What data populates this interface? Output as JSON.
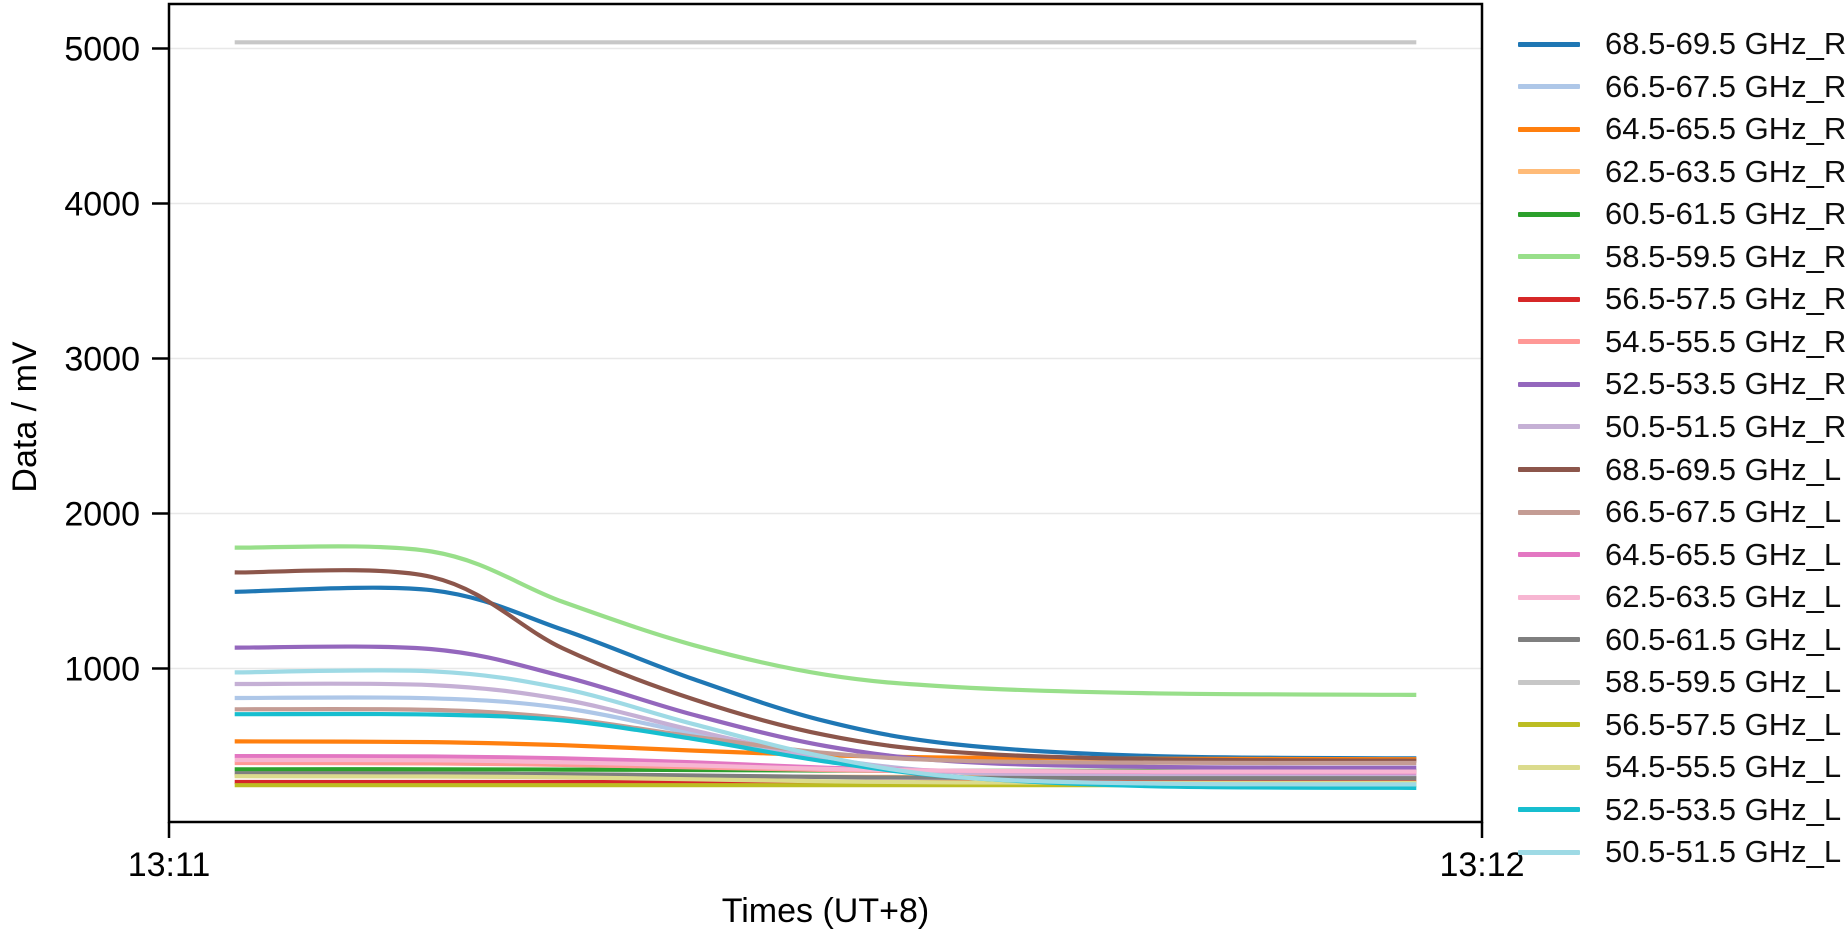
{
  "chart_data": {
    "type": "line",
    "title": "",
    "xlabel": "Times (UT+8)",
    "ylabel": "Data / mV",
    "x_axis": {
      "tick_labels": [
        "13:11",
        "13:12"
      ],
      "tick_seconds": [
        0,
        60
      ],
      "unit": "time (UT+8), one-minute span"
    },
    "y_axis": {
      "tick_values": [
        1000,
        2000,
        3000,
        4000,
        5000
      ],
      "ylim": [
        0,
        5280
      ],
      "grid": true
    },
    "legend_position": "right-outside",
    "x_seconds": [
      3,
      12,
      18,
      24,
      30,
      36,
      45,
      57
    ],
    "series": [
      {
        "label": "68.5-69.5 GHz_R",
        "color": "#1f77b4",
        "values": [
          1495,
          1505,
          1250,
          930,
          660,
          510,
          435,
          420
        ]
      },
      {
        "label": "66.5-67.5 GHz_R",
        "color": "#aec7e8",
        "values": [
          810,
          808,
          745,
          580,
          420,
          330,
          298,
          295
        ]
      },
      {
        "label": "64.5-65.5 GHz_R",
        "color": "#ff7f0e",
        "values": [
          530,
          525,
          505,
          470,
          440,
          425,
          418,
          415
        ]
      },
      {
        "label": "62.5-63.5 GHz_R",
        "color": "#ffbb78",
        "values": [
          310,
          310,
          308,
          305,
          302,
          300,
          300,
          300
        ]
      },
      {
        "label": "60.5-61.5 GHz_R",
        "color": "#2ca02c",
        "values": [
          350,
          350,
          348,
          345,
          342,
          340,
          340,
          340
        ]
      },
      {
        "label": "58.5-59.5 GHz_R",
        "color": "#98df8a",
        "values": [
          1780,
          1755,
          1430,
          1150,
          960,
          880,
          840,
          830
        ]
      },
      {
        "label": "56.5-57.5 GHz_R",
        "color": "#d62728",
        "values": [
          268,
          268,
          268,
          268,
          268,
          268,
          268,
          268
        ]
      },
      {
        "label": "54.5-55.5 GHz_R",
        "color": "#ff9896",
        "values": [
          390,
          388,
          378,
          362,
          345,
          335,
          330,
          330
        ]
      },
      {
        "label": "52.5-53.5 GHz_R",
        "color": "#9467bd",
        "values": [
          1135,
          1125,
          950,
          700,
          500,
          400,
          365,
          360
        ]
      },
      {
        "label": "50.5-51.5 GHz_R",
        "color": "#c5b0d5",
        "values": [
          900,
          893,
          800,
          600,
          420,
          330,
          312,
          310
        ]
      },
      {
        "label": "68.5-69.5 GHz_L",
        "color": "#8c564b",
        "values": [
          1620,
          1590,
          1130,
          800,
          570,
          460,
          415,
          405
        ]
      },
      {
        "label": "66.5-67.5 GHz_L",
        "color": "#c49c94",
        "values": [
          737,
          733,
          680,
          560,
          455,
          405,
          392,
          390
        ]
      },
      {
        "label": "64.5-65.5 GHz_L",
        "color": "#e377c2",
        "values": [
          435,
          432,
          420,
          395,
          360,
          340,
          332,
          330
        ]
      },
      {
        "label": "62.5-63.5 GHz_L",
        "color": "#f7b6d2",
        "values": [
          410,
          408,
          395,
          375,
          352,
          340,
          335,
          335
        ]
      },
      {
        "label": "60.5-61.5 GHz_L",
        "color": "#7f7f7f",
        "values": [
          324,
          322,
          318,
          310,
          300,
          295,
          292,
          292
        ]
      },
      {
        "label": "58.5-59.5 GHz_L",
        "color": "#c7c7c7",
        "values": [
          5040,
          5040,
          5040,
          5040,
          5040,
          5040,
          5040,
          5040
        ]
      },
      {
        "label": "56.5-57.5 GHz_L",
        "color": "#bcbd22",
        "values": [
          247,
          247,
          247,
          247,
          247,
          247,
          247,
          247
        ]
      },
      {
        "label": "54.5-55.5 GHz_L",
        "color": "#dbdb8d",
        "values": [
          305,
          303,
          298,
          285,
          272,
          265,
          262,
          262
        ]
      },
      {
        "label": "52.5-53.5 GHz_L",
        "color": "#17becf",
        "values": [
          705,
          703,
          665,
          545,
          400,
          300,
          240,
          230
        ]
      },
      {
        "label": "50.5-51.5 GHz_L",
        "color": "#9edae5",
        "values": [
          975,
          982,
          870,
          640,
          430,
          300,
          258,
          252
        ]
      }
    ],
    "colors": {
      "frame": "#000000",
      "gridline": "#e8e8e8",
      "tick_text": "#000000"
    }
  }
}
